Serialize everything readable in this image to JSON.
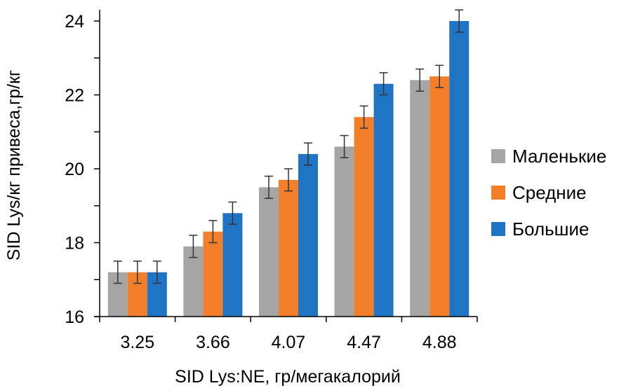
{
  "chart_data": {
    "type": "bar",
    "title": "",
    "xlabel": "SID Lys:NE, гр/мегакалорий",
    "ylabel": "SID Lys/кг привеса,гр/кг",
    "categories": [
      "3.25",
      "3.66",
      "4.07",
      "4.47",
      "4.88"
    ],
    "ylim": [
      16,
      24
    ],
    "yticks": [
      "16",
      "18",
      "20",
      "22",
      "24"
    ],
    "grid": false,
    "error_bars": true,
    "legend_position": "right",
    "series": [
      {
        "name": "Маленькие",
        "color": "#a5a5a5",
        "values": [
          17.2,
          17.9,
          19.5,
          20.6,
          22.4
        ],
        "errors": [
          0.3,
          0.3,
          0.3,
          0.3,
          0.3
        ]
      },
      {
        "name": "Средние",
        "color": "#f47f2b",
        "values": [
          17.2,
          18.3,
          19.7,
          21.4,
          22.5
        ],
        "errors": [
          0.3,
          0.3,
          0.3,
          0.3,
          0.3
        ]
      },
      {
        "name": "Большие",
        "color": "#1f74c4",
        "values": [
          17.2,
          18.8,
          20.4,
          22.3,
          24.0
        ],
        "errors": [
          0.3,
          0.3,
          0.3,
          0.3,
          0.3
        ]
      }
    ]
  }
}
